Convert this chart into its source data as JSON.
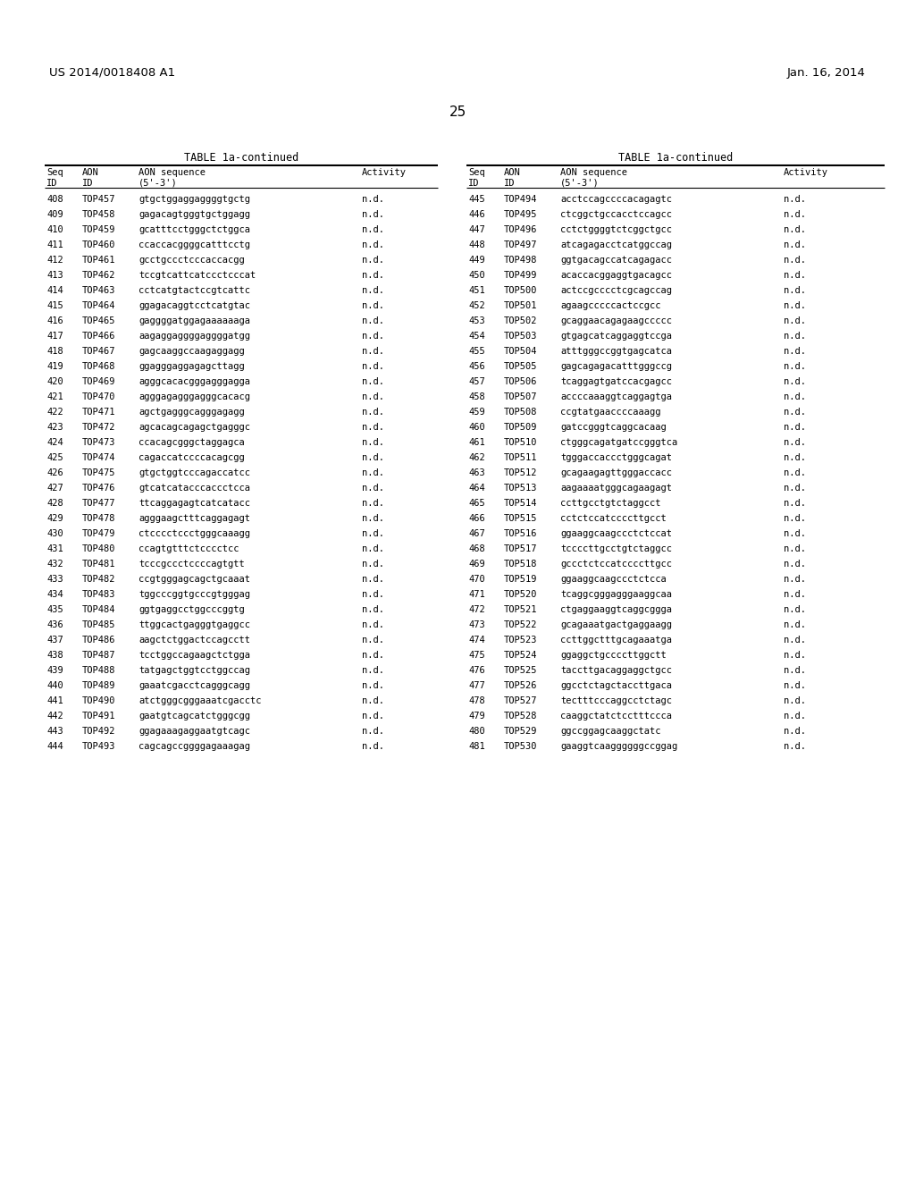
{
  "header_left": "US 2014/0018408 A1",
  "header_right": "Jan. 16, 2014",
  "page_number": "25",
  "table_title": "TABLE 1a-continued",
  "left_table": [
    [
      "408",
      "TOP457",
      "gtgctggaggaggggtgctg",
      "n.d."
    ],
    [
      "409",
      "TOP458",
      "gagacagtgggtgctggagg",
      "n.d."
    ],
    [
      "410",
      "TOP459",
      "gcatttcctgggctctggca",
      "n.d."
    ],
    [
      "411",
      "TOP460",
      "ccaccacggggcatttcctg",
      "n.d."
    ],
    [
      "412",
      "TOP461",
      "gcctgccctcccaccacgg",
      "n.d."
    ],
    [
      "413",
      "TOP462",
      "tccgtcattcatccctcccat",
      "n.d."
    ],
    [
      "414",
      "TOP463",
      "cctcatgtactccgtcattc",
      "n.d."
    ],
    [
      "415",
      "TOP464",
      "ggagacaggtcctcatgtac",
      "n.d."
    ],
    [
      "416",
      "TOP465",
      "gaggggatggagaaaaaaga",
      "n.d."
    ],
    [
      "417",
      "TOP466",
      "aagaggaggggaggggatgg",
      "n.d."
    ],
    [
      "418",
      "TOP467",
      "gagcaaggccaagaggagg",
      "n.d."
    ],
    [
      "419",
      "TOP468",
      "ggagggaggagagcttagg",
      "n.d."
    ],
    [
      "420",
      "TOP469",
      "agggcacacgggagggagga",
      "n.d."
    ],
    [
      "421",
      "TOP470",
      "agggagagggagggcacacg",
      "n.d."
    ],
    [
      "422",
      "TOP471",
      "agctgagggcagggagagg",
      "n.d."
    ],
    [
      "423",
      "TOP472",
      "agcacagcagagctgagggc",
      "n.d."
    ],
    [
      "424",
      "TOP473",
      "ccacagcgggctaggagca",
      "n.d."
    ],
    [
      "425",
      "TOP474",
      "cagaccatccccacagcgg",
      "n.d."
    ],
    [
      "426",
      "TOP475",
      "gtgctggtcccagaccatcc",
      "n.d."
    ],
    [
      "427",
      "TOP476",
      "gtcatcatacccaccctcca",
      "n.d."
    ],
    [
      "428",
      "TOP477",
      "ttcaggagagtcatcatacc",
      "n.d."
    ],
    [
      "429",
      "TOP478",
      "agggaagctttcaggagagt",
      "n.d."
    ],
    [
      "430",
      "TOP479",
      "ctcccctccctgggcaaagg",
      "n.d."
    ],
    [
      "431",
      "TOP480",
      "ccagtgtttctcccctcc",
      "n.d."
    ],
    [
      "432",
      "TOP481",
      "tcccgccctccccagtgtt",
      "n.d."
    ],
    [
      "433",
      "TOP482",
      "ccgtgggagcagctgcaaat",
      "n.d."
    ],
    [
      "434",
      "TOP483",
      "tggcccggtgcccgtgggag",
      "n.d."
    ],
    [
      "435",
      "TOP484",
      "ggtgaggcctggcccggtg",
      "n.d."
    ],
    [
      "436",
      "TOP485",
      "ttggcactgagggtgaggcc",
      "n.d."
    ],
    [
      "437",
      "TOP486",
      "aagctctggactccagcctt",
      "n.d."
    ],
    [
      "438",
      "TOP487",
      "tcctggccagaagctctgga",
      "n.d."
    ],
    [
      "439",
      "TOP488",
      "tatgagctggtcctggccag",
      "n.d."
    ],
    [
      "440",
      "TOP489",
      "gaaatcgacctcagggcagg",
      "n.d."
    ],
    [
      "441",
      "TOP490",
      "atctgggcgggaaatcgacctc",
      "n.d."
    ],
    [
      "442",
      "TOP491",
      "gaatgtcagcatctgggcgg",
      "n.d."
    ],
    [
      "443",
      "TOP492",
      "ggagaaagaggaatgtcagc",
      "n.d."
    ],
    [
      "444",
      "TOP493",
      "cagcagccggggagaaagag",
      "n.d."
    ]
  ],
  "right_table": [
    [
      "445",
      "TOP494",
      "acctccagccccacagagtc",
      "n.d."
    ],
    [
      "446",
      "TOP495",
      "ctcggctgccacctccagcc",
      "n.d."
    ],
    [
      "447",
      "TOP496",
      "cctctggggtctcggctgcc",
      "n.d."
    ],
    [
      "448",
      "TOP497",
      "atcagagacctcatggccag",
      "n.d."
    ],
    [
      "449",
      "TOP498",
      "ggtgacagccatcagagacc",
      "n.d."
    ],
    [
      "450",
      "TOP499",
      "acaccacggaggtgacagcc",
      "n.d."
    ],
    [
      "451",
      "TOP500",
      "actccgcccctcgcagccag",
      "n.d."
    ],
    [
      "452",
      "TOP501",
      "agaagcccccactccgcc",
      "n.d."
    ],
    [
      "453",
      "TOP502",
      "gcaggaacagagaagccccc",
      "n.d."
    ],
    [
      "454",
      "TOP503",
      "gtgagcatcaggaggtccga",
      "n.d."
    ],
    [
      "455",
      "TOP504",
      "atttgggccggtgagcatca",
      "n.d."
    ],
    [
      "456",
      "TOP505",
      "gagcagagacatttgggccg",
      "n.d."
    ],
    [
      "457",
      "TOP506",
      "tcaggagtgatccacgagcc",
      "n.d."
    ],
    [
      "458",
      "TOP507",
      "accccaaaggtcaggagtga",
      "n.d."
    ],
    [
      "459",
      "TOP508",
      "ccgtatgaaccccaaagg",
      "n.d."
    ],
    [
      "460",
      "TOP509",
      "gatccgggtcaggcacaag",
      "n.d."
    ],
    [
      "461",
      "TOP510",
      "ctgggcagatgatccgggtca",
      "n.d."
    ],
    [
      "462",
      "TOP511",
      "tgggaccaccctgggcagat",
      "n.d."
    ],
    [
      "463",
      "TOP512",
      "gcagaagagttgggaccacc",
      "n.d."
    ],
    [
      "464",
      "TOP513",
      "aagaaaatgggcagaagagt",
      "n.d."
    ],
    [
      "465",
      "TOP514",
      "ccttgcctgtctaggcct",
      "n.d."
    ],
    [
      "466",
      "TOP515",
      "cctctccatccccttgcct",
      "n.d."
    ],
    [
      "467",
      "TOP516",
      "ggaaggcaagccctctccat",
      "n.d."
    ],
    [
      "468",
      "TOP517",
      "tccccttgcctgtctaggcc",
      "n.d."
    ],
    [
      "469",
      "TOP518",
      "gccctctccatccccttgcc",
      "n.d."
    ],
    [
      "470",
      "TOP519",
      "ggaaggcaagccctctcca",
      "n.d."
    ],
    [
      "471",
      "TOP520",
      "tcaggcgggagggaaggcaa",
      "n.d."
    ],
    [
      "472",
      "TOP521",
      "ctgaggaaggtcaggcggga",
      "n.d."
    ],
    [
      "473",
      "TOP522",
      "gcagaaatgactgaggaagg",
      "n.d."
    ],
    [
      "474",
      "TOP523",
      "ccttggctttgcagaaatga",
      "n.d."
    ],
    [
      "475",
      "TOP524",
      "ggaggctgccccttggctt",
      "n.d."
    ],
    [
      "476",
      "TOP525",
      "taccttgacaggaggctgcc",
      "n.d."
    ],
    [
      "477",
      "TOP526",
      "ggcctctagctaccttgaca",
      "n.d."
    ],
    [
      "478",
      "TOP527",
      "tectttcccaggcctctagc",
      "n.d."
    ],
    [
      "479",
      "TOP528",
      "caaggctatctcctttccca",
      "n.d."
    ],
    [
      "480",
      "TOP529",
      "ggccggagcaaggctatc",
      "n.d."
    ],
    [
      "481",
      "TOP530",
      "gaaggtcaaggggggccggag",
      "n.d."
    ]
  ],
  "bg_color": "#ffffff",
  "text_color": "#000000"
}
